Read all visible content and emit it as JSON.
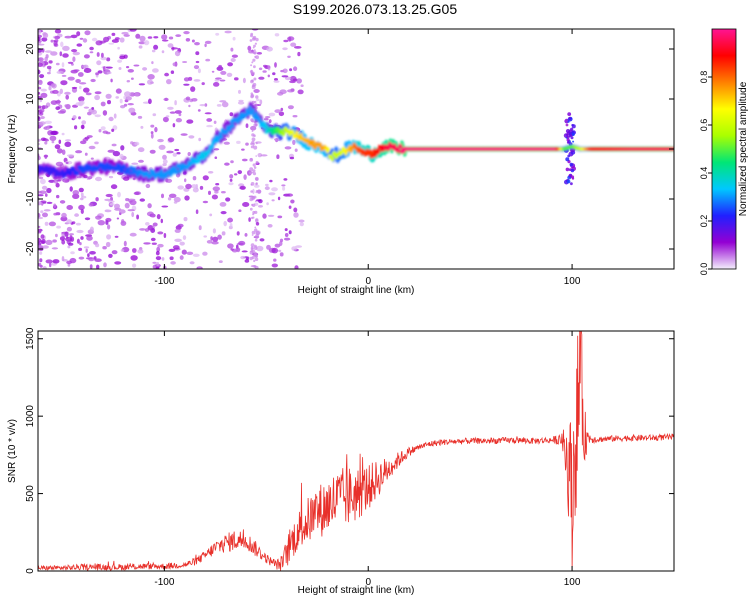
{
  "title": "S199.2026.073.13.25.G05",
  "chart_data": [
    {
      "type": "heatmap",
      "description_key": "spectrogram",
      "xlabel": "Height of straight line (km)",
      "ylabel": "Frequency (Hz)",
      "xlim": [
        -162,
        150
      ],
      "ylim": [
        -24,
        24
      ],
      "xticks": [
        -100,
        0,
        100
      ],
      "xtick_labels": [
        "-100",
        "0",
        "100"
      ],
      "yticks": [
        -20,
        -10,
        0,
        10,
        20
      ],
      "ytick_labels": [
        "-20",
        "-10",
        "0",
        "10",
        "20"
      ],
      "colorbar": {
        "label": "Normalized spectral amplitude",
        "range": [
          0.0,
          1.0
        ],
        "ticks": [
          0.0,
          0.2,
          0.4,
          0.6,
          0.8
        ],
        "tick_labels": [
          "0.0",
          "0.2",
          "0.4",
          "0.6",
          "0.8"
        ],
        "colors": [
          "#f4effc",
          "#9400d3",
          "#2020ff",
          "#00c8ff",
          "#00e676",
          "#aaff00",
          "#ffff00",
          "#ff8000",
          "#ff0000",
          "#ff1493"
        ]
      },
      "ridge": {
        "x": [
          -160,
          -150,
          -140,
          -130,
          -120,
          -110,
          -100,
          -90,
          -80,
          -72,
          -64,
          -58,
          -54,
          -50,
          -46,
          -40,
          -34,
          -28,
          -22,
          -18,
          -14,
          -10,
          -6,
          -2,
          2,
          6,
          10,
          14,
          18,
          30,
          60,
          92,
          96,
          100,
          104,
          110,
          130,
          150
        ],
        "y": [
          -4,
          -5,
          -4,
          -3.5,
          -4,
          -5,
          -5,
          -3.5,
          -1,
          3,
          6,
          8,
          6,
          4,
          3.5,
          3.5,
          2.5,
          1,
          0.5,
          -1.5,
          -1,
          0,
          0.5,
          -0.5,
          -1,
          0,
          0.5,
          0,
          0,
          0,
          0,
          0,
          0,
          0.5,
          0,
          0,
          0,
          0
        ],
        "amplitude": [
          0.2,
          0.2,
          0.25,
          0.25,
          0.25,
          0.3,
          0.3,
          0.3,
          0.35,
          0.3,
          0.3,
          0.3,
          0.3,
          0.35,
          0.45,
          0.6,
          0.7,
          0.75,
          0.75,
          0.6,
          0.6,
          0.7,
          0.8,
          0.85,
          0.85,
          0.9,
          0.95,
          0.95,
          0.98,
          0.98,
          0.98,
          0.98,
          0.5,
          0.5,
          0.6,
          0.9,
          0.95,
          0.95
        ]
      }
    },
    {
      "type": "line",
      "xlabel": "Height of straight line (km)",
      "ylabel": "SNR (10 * v/v)",
      "xlim": [
        -162,
        150
      ],
      "ylim": [
        0,
        1550
      ],
      "xticks": [
        -100,
        0,
        100
      ],
      "xtick_labels": [
        "-100",
        "0",
        "100"
      ],
      "yticks": [
        0,
        500,
        1000,
        1500
      ],
      "ytick_labels": [
        "0",
        "500",
        "1000",
        "1500"
      ],
      "color": "#e8302a",
      "series": [
        {
          "name": "SNR",
          "x": [
            -162,
            -150,
            -140,
            -130,
            -120,
            -110,
            -100,
            -90,
            -85,
            -80,
            -75,
            -70,
            -65,
            -60,
            -55,
            -50,
            -45,
            -42,
            -40,
            -35,
            -30,
            -25,
            -20,
            -15,
            -10,
            -5,
            0,
            5,
            10,
            15,
            20,
            25,
            30,
            35,
            40,
            50,
            60,
            70,
            80,
            90,
            95,
            98,
            100,
            102,
            104,
            106,
            108,
            112,
            120,
            130,
            140,
            150
          ],
          "y": [
            20,
            20,
            25,
            25,
            25,
            30,
            30,
            40,
            60,
            100,
            150,
            180,
            200,
            200,
            140,
            80,
            40,
            50,
            120,
            250,
            320,
            380,
            420,
            460,
            480,
            500,
            540,
            600,
            660,
            720,
            770,
            800,
            820,
            830,
            835,
            840,
            840,
            845,
            840,
            845,
            850,
            700,
            500,
            900,
            1300,
            880,
            860,
            850,
            855,
            860,
            860,
            865
          ],
          "amplitude": [
            15,
            15,
            20,
            20,
            20,
            20,
            20,
            20,
            25,
            30,
            50,
            60,
            70,
            60,
            50,
            30,
            30,
            60,
            100,
            130,
            150,
            170,
            190,
            200,
            200,
            180,
            150,
            120,
            80,
            50,
            30,
            20,
            20,
            20,
            20,
            20,
            20,
            20,
            20,
            20,
            40,
            300,
            500,
            500,
            500,
            200,
            40,
            20,
            20,
            20,
            20,
            20
          ]
        }
      ]
    }
  ]
}
